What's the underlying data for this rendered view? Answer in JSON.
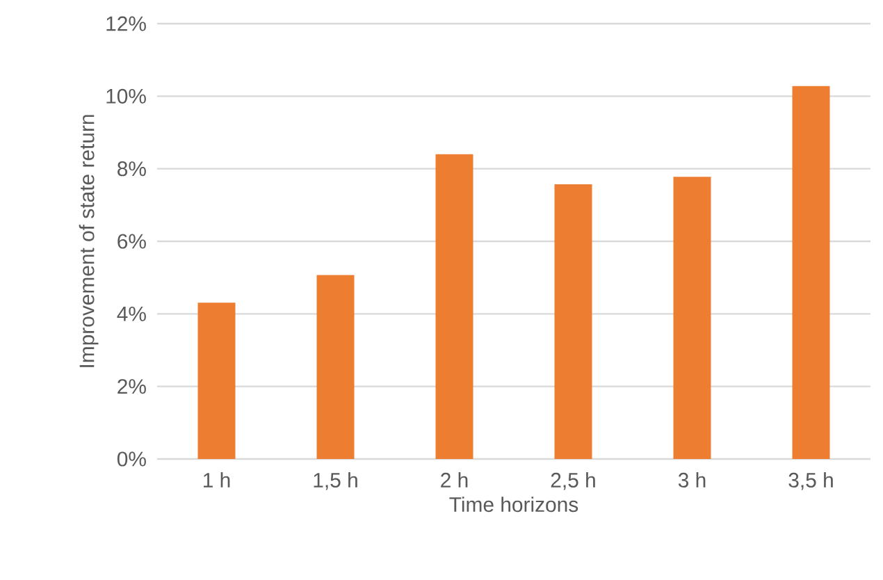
{
  "chart_data": {
    "type": "bar",
    "xlabel": "Time horizons",
    "ylabel": "Improvement of state return",
    "categories": [
      "1 h",
      "1,5 h",
      "2 h",
      "2,5 h",
      "3 h",
      "3,5 h"
    ],
    "values": [
      4.31,
      5.07,
      8.4,
      7.57,
      7.78,
      10.28
    ],
    "color": "#ed7d31",
    "ylim": [
      0,
      12
    ],
    "yticks": [
      {
        "value": 0,
        "label": "0%"
      },
      {
        "value": 2,
        "label": "2%"
      },
      {
        "value": 4,
        "label": "4%"
      },
      {
        "value": 6,
        "label": "6%"
      },
      {
        "value": 8,
        "label": "8%"
      },
      {
        "value": 10,
        "label": "10%"
      },
      {
        "value": 12,
        "label": "12%"
      }
    ],
    "grid": "y"
  }
}
